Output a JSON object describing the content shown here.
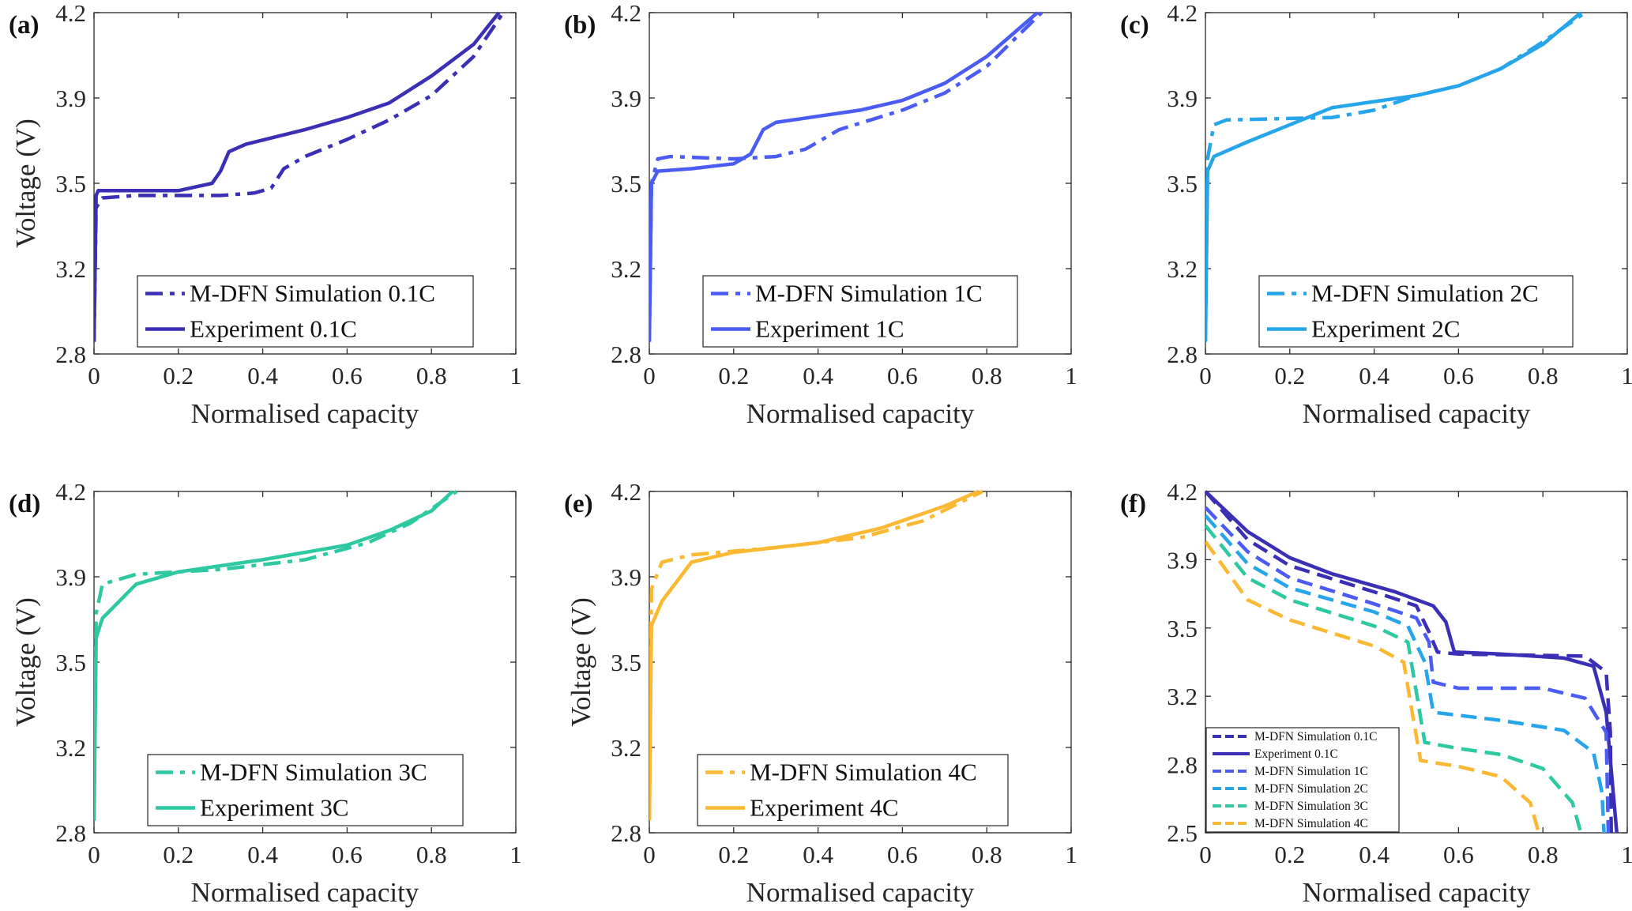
{
  "colors": {
    "0.1C": "#3a2fb5",
    "1C": "#4a5cf4",
    "2C": "#27a5ea",
    "3C": "#2ec9a1",
    "4C": "#fbb833"
  },
  "chart_data": [
    {
      "panel": "(a)",
      "type": "line",
      "xlabel": "Normalised capacity",
      "ylabel": "Voltage (V)",
      "xlim": [
        0,
        1
      ],
      "ylim": [
        2.8,
        4.2
      ],
      "xticks": [
        0,
        0.2,
        0.4,
        0.6,
        0.8,
        1
      ],
      "xticklabels": [
        "0",
        "0.2",
        "0.4",
        "0.6",
        "0.8",
        "1"
      ],
      "yticks": [
        2.8,
        3.15,
        3.5,
        3.85,
        4.2
      ],
      "yticklabels": [
        "2.8",
        "3.2",
        "3.5",
        "3.9",
        "4.2"
      ],
      "legend": "bottom-right",
      "grid": false,
      "series": [
        {
          "name": "M-DFN Simulation 0.1C",
          "color": "0.1C",
          "style": "dashdot",
          "x": [
            0,
            0.005,
            0.02,
            0.1,
            0.3,
            0.38,
            0.42,
            0.45,
            0.5,
            0.6,
            0.7,
            0.8,
            0.9,
            0.97
          ],
          "y": [
            2.85,
            3.4,
            3.44,
            3.45,
            3.45,
            3.46,
            3.48,
            3.56,
            3.61,
            3.68,
            3.76,
            3.86,
            4.02,
            4.2
          ]
        },
        {
          "name": "Experiment 0.1C",
          "color": "0.1C",
          "style": "solid",
          "x": [
            0,
            0.005,
            0.01,
            0.2,
            0.28,
            0.3,
            0.32,
            0.36,
            0.5,
            0.6,
            0.7,
            0.8,
            0.9,
            0.96
          ],
          "y": [
            2.85,
            3.45,
            3.47,
            3.47,
            3.5,
            3.55,
            3.63,
            3.66,
            3.72,
            3.77,
            3.83,
            3.94,
            4.07,
            4.2
          ]
        }
      ]
    },
    {
      "panel": "(b)",
      "type": "line",
      "xlabel": "Normalised capacity",
      "ylabel": "",
      "xlim": [
        0,
        1
      ],
      "ylim": [
        2.8,
        4.2
      ],
      "xticks": [
        0,
        0.2,
        0.4,
        0.6,
        0.8,
        1
      ],
      "xticklabels": [
        "0",
        "0.2",
        "0.4",
        "0.6",
        "0.8",
        "1"
      ],
      "yticks": [
        2.8,
        3.15,
        3.5,
        3.85,
        4.2
      ],
      "yticklabels": [
        "2.8",
        "3.2",
        "3.5",
        "3.9",
        "4.2"
      ],
      "legend": "bottom-right",
      "grid": false,
      "series": [
        {
          "name": "M-DFN Simulation 1C",
          "color": "1C",
          "style": "dashdot",
          "x": [
            0,
            0.005,
            0.02,
            0.05,
            0.2,
            0.3,
            0.37,
            0.45,
            0.6,
            0.7,
            0.8,
            0.93
          ],
          "y": [
            2.85,
            3.5,
            3.6,
            3.61,
            3.6,
            3.61,
            3.64,
            3.72,
            3.8,
            3.87,
            3.98,
            4.2
          ]
        },
        {
          "name": "Experiment 1C",
          "color": "1C",
          "style": "solid",
          "x": [
            0,
            0.005,
            0.02,
            0.1,
            0.2,
            0.24,
            0.27,
            0.3,
            0.5,
            0.6,
            0.7,
            0.8,
            0.92
          ],
          "y": [
            2.85,
            3.5,
            3.55,
            3.56,
            3.58,
            3.62,
            3.72,
            3.75,
            3.8,
            3.84,
            3.91,
            4.02,
            4.2
          ]
        }
      ]
    },
    {
      "panel": "(c)",
      "type": "line",
      "xlabel": "Normalised capacity",
      "ylabel": "",
      "xlim": [
        0,
        1
      ],
      "ylim": [
        2.8,
        4.2
      ],
      "xticks": [
        0,
        0.2,
        0.4,
        0.6,
        0.8,
        1
      ],
      "xticklabels": [
        "0",
        "0.2",
        "0.4",
        "0.6",
        "0.8",
        "1"
      ],
      "yticks": [
        2.8,
        3.15,
        3.5,
        3.85,
        4.2
      ],
      "yticklabels": [
        "2.8",
        "3.2",
        "3.5",
        "3.9",
        "4.2"
      ],
      "legend": "bottom-right",
      "grid": false,
      "series": [
        {
          "name": "M-DFN Simulation 2C",
          "color": "2C",
          "style": "dashdot",
          "x": [
            0,
            0.005,
            0.02,
            0.05,
            0.3,
            0.4,
            0.5,
            0.6,
            0.7,
            0.8,
            0.9
          ],
          "y": [
            2.85,
            3.6,
            3.74,
            3.76,
            3.77,
            3.8,
            3.86,
            3.9,
            3.97,
            4.08,
            4.2
          ]
        },
        {
          "name": "Experiment 2C",
          "color": "2C",
          "style": "solid",
          "x": [
            0,
            0.005,
            0.02,
            0.1,
            0.2,
            0.3,
            0.5,
            0.6,
            0.7,
            0.8,
            0.89
          ],
          "y": [
            2.85,
            3.55,
            3.61,
            3.67,
            3.74,
            3.81,
            3.86,
            3.9,
            3.97,
            4.07,
            4.2
          ]
        }
      ]
    },
    {
      "panel": "(d)",
      "type": "line",
      "xlabel": "Normalised capacity",
      "ylabel": "Voltage (V)",
      "xlim": [
        0,
        1
      ],
      "ylim": [
        2.8,
        4.2
      ],
      "xticks": [
        0,
        0.2,
        0.4,
        0.6,
        0.8,
        1
      ],
      "xticklabels": [
        "0",
        "0.2",
        "0.4",
        "0.6",
        "0.8",
        "1"
      ],
      "yticks": [
        2.8,
        3.15,
        3.5,
        3.85,
        4.2
      ],
      "yticklabels": [
        "2.8",
        "3.2",
        "3.5",
        "3.9",
        "4.2"
      ],
      "legend": "bottom-right",
      "grid": false,
      "series": [
        {
          "name": "M-DFN Simulation 3C",
          "color": "3C",
          "style": "dashdot",
          "x": [
            0,
            0.005,
            0.02,
            0.1,
            0.3,
            0.5,
            0.65,
            0.75,
            0.86
          ],
          "y": [
            2.85,
            3.7,
            3.82,
            3.86,
            3.88,
            3.92,
            3.99,
            4.07,
            4.2
          ]
        },
        {
          "name": "Experiment 3C",
          "color": "3C",
          "style": "solid",
          "x": [
            0,
            0.005,
            0.02,
            0.1,
            0.2,
            0.4,
            0.6,
            0.7,
            0.8,
            0.85
          ],
          "y": [
            2.85,
            3.6,
            3.68,
            3.82,
            3.87,
            3.92,
            3.98,
            4.04,
            4.12,
            4.2
          ]
        }
      ]
    },
    {
      "panel": "(e)",
      "type": "line",
      "xlabel": "Normalised capacity",
      "ylabel": "Voltage (V)",
      "xlim": [
        0,
        1
      ],
      "ylim": [
        2.8,
        4.2
      ],
      "xticks": [
        0,
        0.2,
        0.4,
        0.6,
        0.8,
        1
      ],
      "xticklabels": [
        "0",
        "0.2",
        "0.4",
        "0.6",
        "0.8",
        "1"
      ],
      "yticks": [
        2.8,
        3.15,
        3.5,
        3.85,
        4.2
      ],
      "yticklabels": [
        "2.8",
        "3.2",
        "3.5",
        "3.9",
        "4.2"
      ],
      "legend": "bottom-right",
      "grid": false,
      "series": [
        {
          "name": "M-DFN Simulation 4C",
          "color": "4C",
          "style": "dashdot",
          "x": [
            0,
            0.005,
            0.03,
            0.1,
            0.3,
            0.5,
            0.65,
            0.79
          ],
          "y": [
            2.85,
            3.8,
            3.91,
            3.94,
            3.97,
            4.01,
            4.08,
            4.2
          ]
        },
        {
          "name": "Experiment 4C",
          "color": "4C",
          "style": "solid",
          "x": [
            0,
            0.005,
            0.03,
            0.1,
            0.2,
            0.4,
            0.55,
            0.7,
            0.78
          ],
          "y": [
            2.85,
            3.65,
            3.75,
            3.91,
            3.95,
            3.99,
            4.05,
            4.14,
            4.2
          ]
        }
      ]
    },
    {
      "panel": "(f)",
      "type": "line",
      "xlabel": "Normalised capacity",
      "ylabel": "",
      "xlim": [
        0,
        1
      ],
      "ylim": [
        2.5,
        4.2
      ],
      "xticks": [
        0,
        0.2,
        0.4,
        0.6,
        0.8,
        1
      ],
      "xticklabels": [
        "0",
        "0.2",
        "0.4",
        "0.6",
        "0.8",
        "1"
      ],
      "yticks": [
        2.5,
        2.84,
        3.18,
        3.52,
        3.86,
        4.2
      ],
      "yticklabels": [
        "2.5",
        "2.8",
        "3.2",
        "3.5",
        "3.9",
        "4.2"
      ],
      "legend": "bottom-left",
      "grid": false,
      "series": [
        {
          "name": "M-DFN Simulation 0.1C",
          "color": "0.1C",
          "style": "dashed",
          "x": [
            0,
            0.1,
            0.2,
            0.4,
            0.5,
            0.53,
            0.55,
            0.6,
            0.9,
            0.95,
            0.96,
            0.962
          ],
          "y": [
            4.2,
            3.96,
            3.83,
            3.7,
            3.63,
            3.5,
            3.4,
            3.39,
            3.38,
            3.3,
            3.0,
            2.5
          ]
        },
        {
          "name": "Experiment 0.1C",
          "color": "0.1C",
          "style": "solid",
          "x": [
            0,
            0.1,
            0.2,
            0.3,
            0.45,
            0.54,
            0.57,
            0.59,
            0.7,
            0.85,
            0.92,
            0.95,
            0.975
          ],
          "y": [
            4.2,
            4.0,
            3.87,
            3.79,
            3.7,
            3.63,
            3.55,
            3.4,
            3.39,
            3.37,
            3.33,
            3.1,
            2.5
          ]
        },
        {
          "name": "M-DFN Simulation 1C",
          "color": "1C",
          "style": "dashed",
          "x": [
            0,
            0.1,
            0.2,
            0.4,
            0.5,
            0.53,
            0.54,
            0.6,
            0.8,
            0.9,
            0.95,
            0.955
          ],
          "y": [
            4.12,
            3.9,
            3.77,
            3.64,
            3.57,
            3.45,
            3.25,
            3.22,
            3.22,
            3.17,
            3.0,
            2.5
          ]
        },
        {
          "name": "M-DFN Simulation 2C",
          "color": "2C",
          "style": "dashed",
          "x": [
            0,
            0.1,
            0.2,
            0.4,
            0.48,
            0.52,
            0.54,
            0.7,
            0.85,
            0.92,
            0.94,
            0.945
          ],
          "y": [
            4.08,
            3.84,
            3.72,
            3.6,
            3.53,
            3.35,
            3.1,
            3.06,
            3.01,
            2.9,
            2.7,
            2.5
          ]
        },
        {
          "name": "M-DFN Simulation 3C",
          "color": "3C",
          "style": "dashed",
          "x": [
            0,
            0.1,
            0.2,
            0.4,
            0.48,
            0.5,
            0.52,
            0.6,
            0.7,
            0.8,
            0.87,
            0.89
          ],
          "y": [
            4.03,
            3.77,
            3.66,
            3.53,
            3.45,
            3.2,
            2.95,
            2.92,
            2.89,
            2.82,
            2.65,
            2.5
          ]
        },
        {
          "name": "M-DFN Simulation 4C",
          "color": "4C",
          "style": "dashed",
          "x": [
            0,
            0.1,
            0.2,
            0.4,
            0.47,
            0.49,
            0.51,
            0.6,
            0.7,
            0.77,
            0.79
          ],
          "y": [
            3.95,
            3.66,
            3.56,
            3.43,
            3.35,
            3.1,
            2.86,
            2.83,
            2.78,
            2.65,
            2.5
          ]
        }
      ]
    }
  ]
}
